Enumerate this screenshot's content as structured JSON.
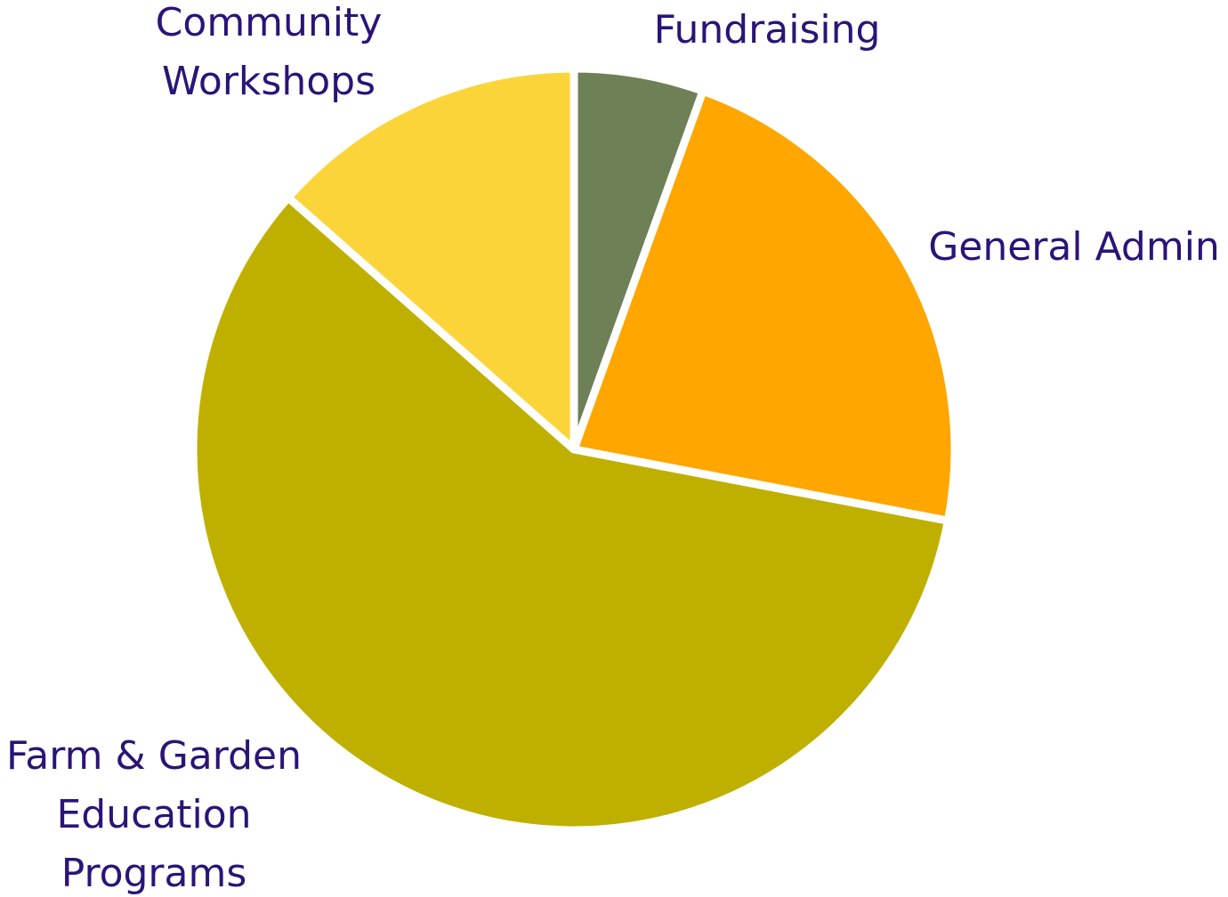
{
  "chart_data": {
    "type": "pie",
    "title": "",
    "slices": [
      {
        "label_lines": [
          "Fundraising"
        ],
        "value": 5.5,
        "color": "#6e8055"
      },
      {
        "label_lines": [
          "General Admin"
        ],
        "value": 22.5,
        "color": "#ffa600"
      },
      {
        "label_lines": [
          "Farm & Garden",
          "Education",
          "Programs"
        ],
        "value": 58.5,
        "color": "#bfb000"
      },
      {
        "label_lines": [
          "Community",
          "Workshops"
        ],
        "value": 13.5,
        "color": "#fbd43a"
      }
    ],
    "start": "12 o'clock",
    "direction": "clockwise",
    "legend": "none",
    "label_color": "#2b1477",
    "separator_color": "#ffffff"
  }
}
